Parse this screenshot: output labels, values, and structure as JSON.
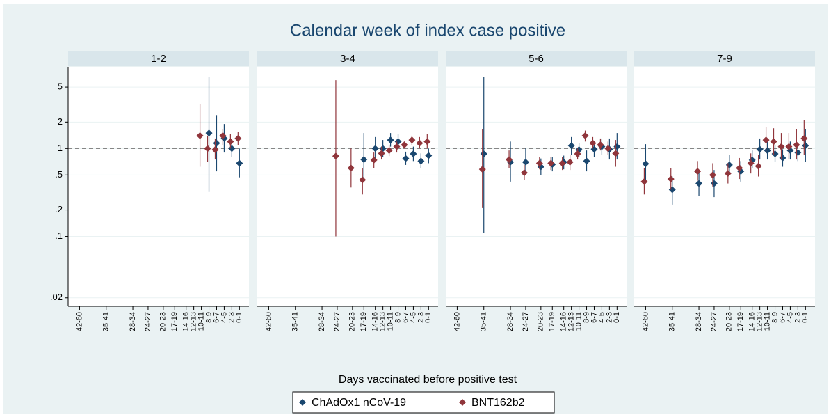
{
  "chart_data": {
    "type": "errorbar",
    "title": "Calendar week of index case positive",
    "x_label": "Days vaccinated before positive test",
    "log_y": true,
    "grid": true,
    "refline": 1,
    "ylim": [
      0.016,
      8.5
    ],
    "yticks": [
      {
        "value": 0.02,
        "label": ".02"
      },
      {
        "value": 0.1,
        "label": ".1"
      },
      {
        "value": 0.2,
        "label": ".2"
      },
      {
        "value": 0.5,
        "label": ".5"
      },
      1,
      2,
      5
    ],
    "xlim": [
      45,
      -2.5
    ],
    "xticks": [
      {
        "value": 42,
        "label": "42-60"
      },
      {
        "value": 35,
        "label": "35-41"
      },
      {
        "value": 28,
        "label": "28-34"
      },
      {
        "value": 24,
        "label": "24-27"
      },
      {
        "value": 20,
        "label": "20-23"
      },
      {
        "value": 17,
        "label": "17-19"
      },
      {
        "value": 14,
        "label": "14-16"
      },
      {
        "value": 12,
        "label": "12-13"
      },
      {
        "value": 10,
        "label": "10-11"
      },
      {
        "value": 8,
        "label": "8-9"
      },
      {
        "value": 6,
        "label": "6-7"
      },
      {
        "value": 4,
        "label": "4-5"
      },
      {
        "value": 2,
        "label": "2-3"
      },
      {
        "value": 0,
        "label": "0-1"
      }
    ],
    "series": [
      {
        "name": "ChAdOx1 nCoV-19",
        "color": "#1a476f"
      },
      {
        "name": "BNT162b2",
        "color": "#90353b"
      }
    ],
    "facets": [
      {
        "title": "1-2",
        "series": [
          {
            "x": [
              8,
              6,
              4,
              2,
              0
            ],
            "values": [
              1.5,
              1.15,
              1.3,
              1.0,
              0.68
            ],
            "lower": [
              0.32,
              0.55,
              0.9,
              0.8,
              0.47
            ],
            "upper": [
              6.5,
              2.4,
              1.9,
              1.3,
              1.0
            ]
          },
          {
            "x": [
              10,
              8,
              6,
              4,
              2,
              0
            ],
            "values": [
              1.4,
              1.0,
              0.97,
              1.4,
              1.2,
              1.3
            ],
            "lower": [
              0.62,
              0.7,
              0.75,
              1.1,
              1.0,
              1.1
            ],
            "upper": [
              3.2,
              1.4,
              1.3,
              1.65,
              1.45,
              1.55
            ]
          }
        ]
      },
      {
        "title": "3-4",
        "series": [
          {
            "x": [
              17,
              14,
              12,
              10,
              8,
              6,
              4,
              2,
              0
            ],
            "values": [
              0.75,
              1.0,
              1.0,
              1.25,
              1.2,
              0.77,
              0.87,
              0.72,
              0.83
            ],
            "lower": [
              0.45,
              0.75,
              0.8,
              1.05,
              1.0,
              0.65,
              0.72,
              0.6,
              0.68
            ],
            "upper": [
              1.5,
              1.35,
              1.25,
              1.5,
              1.45,
              0.92,
              1.05,
              0.88,
              1.0
            ]
          },
          {
            "x": [
              24,
              20,
              17,
              14,
              12,
              10,
              8,
              6,
              4,
              2,
              0
            ],
            "values": [
              0.82,
              0.6,
              0.44,
              0.74,
              0.88,
              0.95,
              1.05,
              1.1,
              1.25,
              1.15,
              1.2
            ],
            "lower": [
              0.1,
              0.36,
              0.3,
              0.6,
              0.75,
              0.82,
              0.9,
              1.0,
              1.1,
              1.0,
              1.0
            ],
            "upper": [
              6.0,
              1.0,
              0.6,
              0.9,
              1.05,
              1.1,
              1.2,
              1.2,
              1.4,
              1.35,
              1.45
            ]
          }
        ]
      },
      {
        "title": "5-6",
        "series": [
          {
            "x": [
              35,
              28,
              24,
              20,
              17,
              14,
              12,
              10,
              8,
              6,
              4,
              2,
              0
            ],
            "values": [
              0.87,
              0.7,
              0.7,
              0.62,
              0.66,
              0.7,
              1.08,
              0.97,
              0.72,
              0.98,
              1.05,
              0.98,
              1.05
            ],
            "lower": [
              0.11,
              0.42,
              0.5,
              0.5,
              0.55,
              0.58,
              0.85,
              0.8,
              0.55,
              0.8,
              0.85,
              0.75,
              0.75
            ],
            "upper": [
              6.5,
              1.2,
              1.0,
              0.77,
              0.8,
              0.83,
              1.35,
              1.15,
              0.95,
              1.2,
              1.3,
              1.3,
              1.5
            ]
          },
          {
            "x": [
              35,
              28,
              24,
              20,
              17,
              14,
              12,
              10,
              8,
              6,
              4,
              2,
              0
            ],
            "values": [
              0.58,
              0.75,
              0.53,
              0.68,
              0.68,
              0.68,
              0.7,
              0.87,
              1.4,
              1.15,
              1.1,
              1.0,
              0.88
            ],
            "lower": [
              0.21,
              0.6,
              0.44,
              0.58,
              0.57,
              0.57,
              0.57,
              0.75,
              1.2,
              1.0,
              0.95,
              0.85,
              0.62
            ],
            "upper": [
              1.65,
              0.95,
              0.65,
              0.8,
              0.8,
              0.8,
              0.85,
              1.0,
              1.6,
              1.35,
              1.3,
              1.2,
              1.25
            ]
          }
        ]
      },
      {
        "title": "7-9",
        "series": [
          {
            "x": [
              42,
              35,
              28,
              24,
              20,
              17,
              14,
              12,
              10,
              8,
              6,
              4,
              2,
              0
            ],
            "values": [
              0.67,
              0.34,
              0.4,
              0.4,
              0.65,
              0.55,
              0.74,
              0.98,
              0.95,
              0.87,
              0.78,
              0.95,
              0.9,
              1.08
            ],
            "lower": [
              0.4,
              0.23,
              0.29,
              0.28,
              0.5,
              0.42,
              0.6,
              0.75,
              0.75,
              0.7,
              0.62,
              0.75,
              0.72,
              0.7
            ],
            "upper": [
              1.12,
              0.48,
              0.55,
              0.57,
              0.85,
              0.72,
              0.95,
              1.3,
              1.2,
              1.1,
              0.98,
              1.2,
              1.15,
              1.65
            ]
          },
          {
            "x": [
              42,
              35,
              28,
              24,
              20,
              17,
              14,
              12,
              10,
              8,
              6,
              4,
              2,
              0
            ],
            "values": [
              0.42,
              0.45,
              0.55,
              0.5,
              0.52,
              0.6,
              0.68,
              0.63,
              1.25,
              1.2,
              1.05,
              1.05,
              1.1,
              1.3
            ],
            "lower": [
              0.3,
              0.34,
              0.43,
              0.37,
              0.4,
              0.45,
              0.52,
              0.48,
              0.9,
              0.85,
              0.75,
              0.75,
              0.75,
              0.85
            ],
            "upper": [
              0.6,
              0.6,
              0.72,
              0.68,
              0.68,
              0.78,
              0.88,
              0.85,
              1.75,
              1.7,
              1.5,
              1.5,
              1.65,
              2.1
            ]
          }
        ]
      }
    ]
  }
}
